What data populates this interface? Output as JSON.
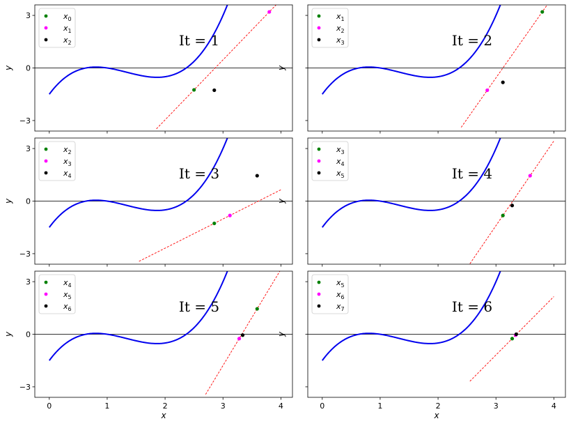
{
  "chart_data": [
    {
      "type": "line",
      "title": "It = 1",
      "xlabel": "",
      "ylabel": "y",
      "xlim": [
        -0.25,
        4.2
      ],
      "ylim": [
        -3.6,
        3.6
      ],
      "xticks": [],
      "yticks": [
        -3,
        0,
        3
      ],
      "curve": "y = x^3 - 4x^2 + 4.5x - 1.5 (blue)",
      "secant": {
        "x_from": 1.85,
        "x_to": 3.95
      },
      "points": [
        {
          "name": "x0",
          "x": 2.5,
          "y": -1.25,
          "color": "#008000"
        },
        {
          "name": "x1",
          "x": 3.8,
          "y": 3.2,
          "color": "#ff00ff"
        },
        {
          "name": "x2",
          "x": 2.85,
          "y": -1.27,
          "color": "#000000"
        }
      ],
      "legend": [
        {
          "label": "x",
          "sub": "0",
          "color": "#008000"
        },
        {
          "label": "x",
          "sub": "1",
          "color": "#ff00ff"
        },
        {
          "label": "x",
          "sub": "2",
          "color": "#000000"
        }
      ],
      "legend_position": "top-left"
    },
    {
      "type": "line",
      "title": "It = 2",
      "xlabel": "",
      "ylabel": "y",
      "xlim": [
        -0.25,
        4.2
      ],
      "ylim": [
        -3.6,
        3.6
      ],
      "xticks": [],
      "yticks": [],
      "secant": {
        "x_from": 2.4,
        "x_to": 3.9
      },
      "points": [
        {
          "name": "x1",
          "x": 3.8,
          "y": 3.2,
          "color": "#008000"
        },
        {
          "name": "x2",
          "x": 2.85,
          "y": -1.27,
          "color": "#ff00ff"
        },
        {
          "name": "x3",
          "x": 3.12,
          "y": -0.82,
          "color": "#000000"
        }
      ],
      "legend": [
        {
          "label": "x",
          "sub": "1",
          "color": "#008000"
        },
        {
          "label": "x",
          "sub": "2",
          "color": "#ff00ff"
        },
        {
          "label": "x",
          "sub": "3",
          "color": "#000000"
        }
      ],
      "legend_position": "top-left"
    },
    {
      "type": "line",
      "title": "It = 3",
      "xlabel": "",
      "ylabel": "y",
      "xlim": [
        -0.25,
        4.2
      ],
      "ylim": [
        -3.6,
        3.6
      ],
      "xticks": [],
      "yticks": [
        -3,
        0,
        3
      ],
      "secant": {
        "x_from": 1.55,
        "x_to": 4.0
      },
      "points": [
        {
          "name": "x2",
          "x": 2.85,
          "y": -1.27,
          "color": "#008000"
        },
        {
          "name": "x3",
          "x": 3.12,
          "y": -0.82,
          "color": "#ff00ff"
        },
        {
          "name": "x4",
          "x": 3.59,
          "y": 1.45,
          "color": "#000000"
        }
      ],
      "legend": [
        {
          "label": "x",
          "sub": "2",
          "color": "#008000"
        },
        {
          "label": "x",
          "sub": "3",
          "color": "#ff00ff"
        },
        {
          "label": "x",
          "sub": "4",
          "color": "#000000"
        }
      ],
      "legend_position": "top-left"
    },
    {
      "type": "line",
      "title": "It = 4",
      "xlabel": "",
      "ylabel": "y",
      "xlim": [
        -0.25,
        4.2
      ],
      "ylim": [
        -3.6,
        3.6
      ],
      "xticks": [],
      "yticks": [],
      "secant": {
        "x_from": 2.55,
        "x_to": 4.0
      },
      "points": [
        {
          "name": "x3",
          "x": 3.12,
          "y": -0.82,
          "color": "#008000"
        },
        {
          "name": "x4",
          "x": 3.59,
          "y": 1.45,
          "color": "#ff00ff"
        },
        {
          "name": "x5",
          "x": 3.28,
          "y": -0.25,
          "color": "#000000"
        }
      ],
      "legend": [
        {
          "label": "x",
          "sub": "3",
          "color": "#008000"
        },
        {
          "label": "x",
          "sub": "4",
          "color": "#ff00ff"
        },
        {
          "label": "x",
          "sub": "5",
          "color": "#000000"
        }
      ],
      "legend_position": "top-left"
    },
    {
      "type": "line",
      "title": "It = 5",
      "xlabel": "x",
      "ylabel": "y",
      "xlim": [
        -0.25,
        4.2
      ],
      "ylim": [
        -3.6,
        3.6
      ],
      "xticks": [
        0,
        1,
        2,
        3,
        4
      ],
      "yticks": [
        -3,
        0,
        3
      ],
      "secant": {
        "x_from": 2.7,
        "x_to": 4.0
      },
      "points": [
        {
          "name": "x4",
          "x": 3.59,
          "y": 1.45,
          "color": "#008000"
        },
        {
          "name": "x5",
          "x": 3.28,
          "y": -0.25,
          "color": "#ff00ff"
        },
        {
          "name": "x6",
          "x": 3.34,
          "y": -0.05,
          "color": "#000000"
        }
      ],
      "legend": [
        {
          "label": "x",
          "sub": "4",
          "color": "#008000"
        },
        {
          "label": "x",
          "sub": "5",
          "color": "#ff00ff"
        },
        {
          "label": "x",
          "sub": "6",
          "color": "#000000"
        }
      ],
      "legend_position": "top-left"
    },
    {
      "type": "line",
      "title": "It = 6",
      "xlabel": "x",
      "ylabel": "y",
      "xlim": [
        -0.25,
        4.2
      ],
      "ylim": [
        -3.6,
        3.6
      ],
      "xticks": [
        0,
        1,
        2,
        3,
        4
      ],
      "yticks": [],
      "secant": {
        "x_from": 2.55,
        "x_to": 4.0
      },
      "points": [
        {
          "name": "x5",
          "x": 3.28,
          "y": -0.25,
          "color": "#008000"
        },
        {
          "name": "x6",
          "x": 3.34,
          "y": -0.05,
          "color": "#ff00ff"
        },
        {
          "name": "x7",
          "x": 3.35,
          "y": 0.0,
          "color": "#000000"
        }
      ],
      "legend": [
        {
          "label": "x",
          "sub": "5",
          "color": "#008000"
        },
        {
          "label": "x",
          "sub": "6",
          "color": "#ff00ff"
        },
        {
          "label": "x",
          "sub": "7",
          "color": "#000000"
        }
      ],
      "legend_position": "top-left"
    }
  ]
}
